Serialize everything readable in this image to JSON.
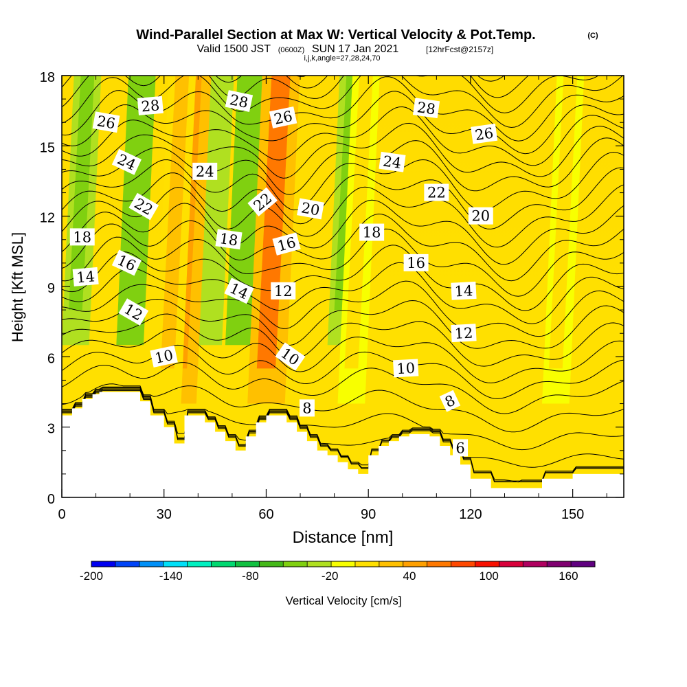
{
  "chart_data": {
    "type": "heatmap",
    "title": "Wind-Parallel Section at Max W: Vertical Velocity & Pot.Temp.",
    "title_unit": "(C)",
    "subtitle_valid": "Valid 1500 JST",
    "subtitle_utc": "(0600Z)",
    "subtitle_date": "SUN 17 Jan 2021",
    "subtitle_fcst": "[12hrFcst@2157z]",
    "subtitle_indices": "i,j,k,angle=27,28,24,70",
    "xlabel": "Distance [nm]",
    "ylabel": "Height [Kft MSL]",
    "xlim": [
      0,
      165
    ],
    "ylim": [
      0,
      18
    ],
    "x_ticks": [
      0,
      30,
      60,
      90,
      120,
      150
    ],
    "y_ticks": [
      0,
      3,
      6,
      9,
      12,
      15,
      18
    ],
    "colorbar": {
      "label": "Vertical Velocity [cm/s]",
      "min": -200,
      "max": 180,
      "step": 20,
      "tick_values": [
        -200,
        -140,
        -80,
        -20,
        40,
        100,
        160
      ],
      "colors": [
        "#0000f0",
        "#0044f8",
        "#0090f8",
        "#00e0f8",
        "#00f0c0",
        "#00d870",
        "#10c040",
        "#44b818",
        "#80d010",
        "#b0e020",
        "#f8ff00",
        "#ffe000",
        "#ffc000",
        "#ffa000",
        "#ff7800",
        "#ff4800",
        "#f81000",
        "#d8003a",
        "#b00060",
        "#800070",
        "#600080"
      ]
    },
    "terrain": {
      "x": [
        0,
        3,
        3,
        6,
        6,
        9,
        9,
        11,
        11,
        14,
        14,
        17,
        17,
        23,
        23,
        26,
        26,
        30,
        30,
        33,
        33,
        36,
        36,
        42,
        42,
        45,
        45,
        48,
        48,
        51,
        51,
        54,
        54,
        57,
        57,
        60,
        60,
        66,
        66,
        69,
        69,
        72,
        72,
        75,
        75,
        78,
        78,
        81,
        81,
        84,
        84,
        87,
        87,
        90,
        90,
        93,
        93,
        96,
        96,
        99,
        99,
        102,
        102,
        105,
        105,
        108,
        108,
        111,
        111,
        114,
        114,
        117,
        117,
        120,
        120,
        123,
        123,
        126,
        126,
        129,
        129,
        132,
        132,
        135,
        135,
        138,
        138,
        141,
        141,
        144,
        144,
        147,
        147,
        150,
        150,
        153,
        153,
        156,
        156,
        159,
        159,
        162,
        162,
        165
      ],
      "height": [
        3.5,
        3.5,
        3.8,
        3.8,
        4.2,
        4.2,
        4.4,
        4.4,
        4.5,
        4.5,
        4.5,
        4.5,
        4.5,
        4.5,
        4.1,
        4.1,
        3.5,
        3.5,
        3.0,
        3.0,
        2.3,
        2.3,
        3.5,
        3.5,
        3.2,
        3.2,
        2.8,
        2.8,
        2.4,
        2.4,
        2.0,
        2.0,
        2.6,
        2.6,
        3.2,
        3.2,
        3.5,
        3.5,
        3.2,
        3.2,
        2.8,
        2.8,
        2.4,
        2.4,
        2.0,
        2.0,
        1.8,
        1.8,
        1.5,
        1.5,
        1.2,
        1.2,
        1.0,
        1.0,
        1.8,
        1.8,
        2.2,
        2.2,
        2.4,
        2.4,
        2.6,
        2.6,
        2.7,
        2.7,
        2.7,
        2.7,
        2.6,
        2.6,
        2.2,
        2.2,
        1.8,
        1.8,
        1.4,
        1.4,
        0.8,
        0.8,
        0.8,
        0.8,
        0.4,
        0.4,
        0.4,
        0.4,
        0.4,
        0.4,
        0.4,
        0.4,
        0.4,
        0.4,
        0.8,
        0.8,
        0.8,
        0.8,
        0.8,
        0.8,
        1.0,
        1.0,
        1.0,
        1.0,
        1.0,
        1.0,
        1.0,
        1.0,
        1.0,
        1.0
      ]
    },
    "updrafts": [
      {
        "x": 34,
        "w": 75
      },
      {
        "x": 60,
        "w": 90
      },
      {
        "x": 31,
        "w": 50
      },
      {
        "x": 145,
        "w": 35
      },
      {
        "x": 85,
        "w": 30
      }
    ],
    "downdrafts": [
      {
        "x": 20,
        "w": -40
      },
      {
        "x": 52,
        "w": -40
      },
      {
        "x": 82,
        "w": -25
      },
      {
        "x": 4,
        "w": -30
      },
      {
        "x": 43,
        "w": -20
      }
    ],
    "theta_contour_values": [
      6,
      8,
      10,
      12,
      14,
      16,
      18,
      20,
      22,
      24,
      26,
      28
    ],
    "theta_labels": [
      {
        "text": "28",
        "x": 26,
        "h": 16.7,
        "angle": -5
      },
      {
        "text": "28",
        "x": 52,
        "h": 16.9,
        "angle": 12
      },
      {
        "text": "28",
        "x": 107,
        "h": 16.6,
        "angle": 8
      },
      {
        "text": "26",
        "x": 13,
        "h": 16.0,
        "angle": 10
      },
      {
        "text": "26",
        "x": 65,
        "h": 16.2,
        "angle": -12
      },
      {
        "text": "26",
        "x": 124,
        "h": 15.5,
        "angle": -8
      },
      {
        "text": "24",
        "x": 19,
        "h": 14.3,
        "angle": 25
      },
      {
        "text": "24",
        "x": 42,
        "h": 13.9,
        "angle": 0
      },
      {
        "text": "24",
        "x": 97,
        "h": 14.3,
        "angle": 8
      },
      {
        "text": "22",
        "x": 24,
        "h": 12.4,
        "angle": 30
      },
      {
        "text": "22",
        "x": 59,
        "h": 12.6,
        "angle": -40
      },
      {
        "text": "22",
        "x": 110,
        "h": 13.0,
        "angle": 0
      },
      {
        "text": "20",
        "x": 73,
        "h": 12.3,
        "angle": 10
      },
      {
        "text": "20",
        "x": 123,
        "h": 12.0,
        "angle": 0
      },
      {
        "text": "18",
        "x": 6,
        "h": 11.1,
        "angle": 0
      },
      {
        "text": "18",
        "x": 49,
        "h": 11.0,
        "angle": 8
      },
      {
        "text": "18",
        "x": 91,
        "h": 11.3,
        "angle": 0
      },
      {
        "text": "16",
        "x": 19,
        "h": 10.0,
        "angle": 25
      },
      {
        "text": "16",
        "x": 66,
        "h": 10.8,
        "angle": -15
      },
      {
        "text": "16",
        "x": 104,
        "h": 10.0,
        "angle": 0
      },
      {
        "text": "14",
        "x": 7,
        "h": 9.4,
        "angle": -5
      },
      {
        "text": "14",
        "x": 52,
        "h": 8.8,
        "angle": 25
      },
      {
        "text": "14",
        "x": 118,
        "h": 8.8,
        "angle": -3
      },
      {
        "text": "12",
        "x": 21,
        "h": 7.9,
        "angle": 30
      },
      {
        "text": "12",
        "x": 65,
        "h": 8.8,
        "angle": 0
      },
      {
        "text": "12",
        "x": 118,
        "h": 7.0,
        "angle": -3
      },
      {
        "text": "10",
        "x": 30,
        "h": 6.0,
        "angle": -12
      },
      {
        "text": "10",
        "x": 67,
        "h": 6.0,
        "angle": 35
      },
      {
        "text": "10",
        "x": 101,
        "h": 5.5,
        "angle": -3
      },
      {
        "text": "8",
        "x": 72,
        "h": 3.8,
        "angle": 0
      },
      {
        "text": "8",
        "x": 114,
        "h": 4.1,
        "angle": -25
      },
      {
        "text": "6",
        "x": 117,
        "h": 2.1,
        "angle": 0
      }
    ]
  }
}
